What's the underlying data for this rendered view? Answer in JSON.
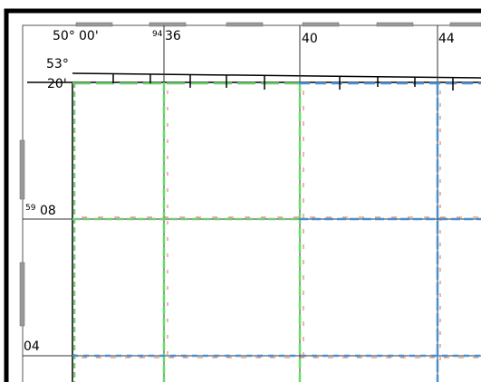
{
  "top_labels": {
    "corner_degrees": "50°",
    "corner_minutes": "00'",
    "easting_prefix": "94",
    "easting_36": "36",
    "easting_40": "40",
    "easting_44": "44"
  },
  "left_labels": {
    "corner_lat_degrees": "53°",
    "corner_lat_minutes": "20'",
    "northing_prefix": "59",
    "northing_08": "08",
    "northing_04": "04"
  }
}
